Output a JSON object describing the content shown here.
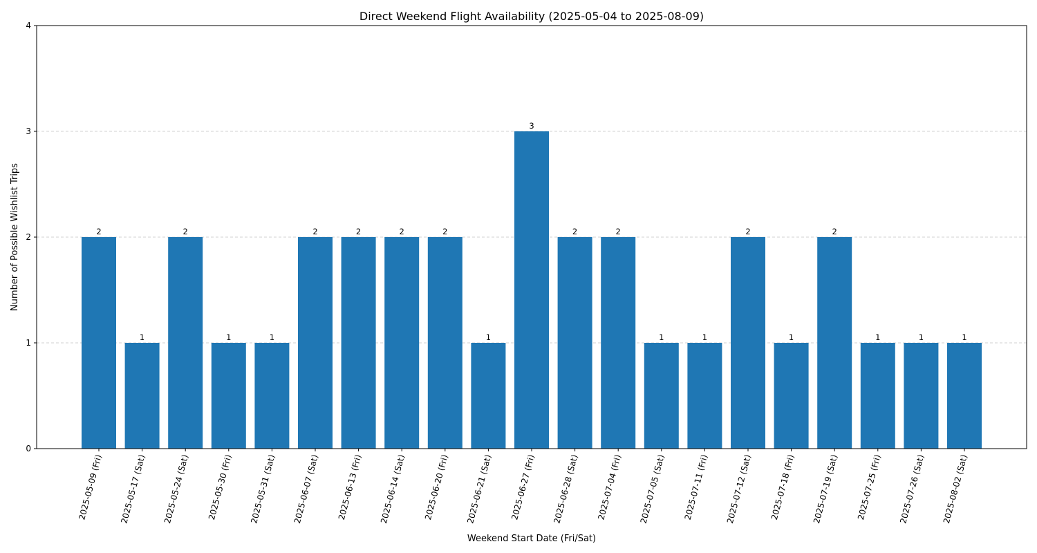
{
  "chart_data": {
    "type": "bar",
    "title": "Direct Weekend Flight Availability (2025-05-04 to 2025-08-09)",
    "xlabel": "Weekend Start Date (Fri/Sat)",
    "ylabel": "Number of Possible Wishlist Trips",
    "categories": [
      "2025-05-09 (Fri)",
      "2025-05-17 (Sat)",
      "2025-05-24 (Sat)",
      "2025-05-30 (Fri)",
      "2025-05-31 (Sat)",
      "2025-06-07 (Sat)",
      "2025-06-13 (Fri)",
      "2025-06-14 (Sat)",
      "2025-06-20 (Fri)",
      "2025-06-21 (Sat)",
      "2025-06-27 (Fri)",
      "2025-06-28 (Sat)",
      "2025-07-04 (Fri)",
      "2025-07-05 (Sat)",
      "2025-07-11 (Fri)",
      "2025-07-12 (Sat)",
      "2025-07-18 (Fri)",
      "2025-07-19 (Sat)",
      "2025-07-25 (Fri)",
      "2025-07-26 (Sat)",
      "2025-08-02 (Sat)"
    ],
    "values": [
      2,
      1,
      2,
      1,
      1,
      2,
      2,
      2,
      2,
      1,
      3,
      2,
      2,
      1,
      1,
      2,
      1,
      2,
      1,
      1,
      1
    ],
    "ylim": [
      0,
      4
    ],
    "yticks": [
      0,
      1,
      2,
      3,
      4
    ],
    "grid": "y-dashed",
    "bar_color": "#1f77b4",
    "data_labels": true
  }
}
